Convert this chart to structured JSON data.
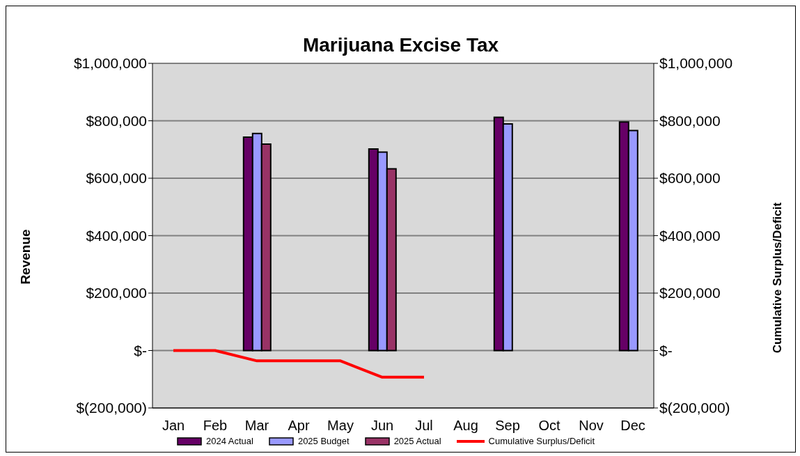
{
  "chart_data": {
    "type": "bar",
    "title": "Marijuana Excise Tax",
    "ylabel": "Revenue",
    "y2label": "Cumulative  Surplus/Deficit",
    "categories": [
      "Jan",
      "Feb",
      "Mar",
      "Apr",
      "May",
      "Jun",
      "Jul",
      "Aug",
      "Sep",
      "Oct",
      "Nov",
      "Dec"
    ],
    "series": [
      {
        "name": "2024 Actual",
        "color": "#660066",
        "values": [
          null,
          null,
          743000,
          null,
          null,
          702000,
          null,
          null,
          812000,
          null,
          null,
          796000
        ]
      },
      {
        "name": "2025 Budget",
        "color": "#9999ff",
        "values": [
          null,
          null,
          756000,
          null,
          null,
          691000,
          null,
          null,
          789000,
          null,
          null,
          766000
        ]
      },
      {
        "name": "2025 Actual",
        "color": "#993366",
        "values": [
          null,
          null,
          719000,
          null,
          null,
          633000,
          null,
          null,
          null,
          null,
          null,
          null
        ]
      },
      {
        "name": "Cumulative Surplus/Deficit",
        "type": "line",
        "axis": "y2",
        "color": "#ff0000",
        "values": [
          0,
          0,
          -36000,
          -36000,
          -36000,
          -93000,
          -93000,
          null,
          null,
          null,
          null,
          null
        ]
      }
    ],
    "ylim": [
      -200000,
      1000000
    ],
    "yticks": [
      {
        "value": -200000,
        "label": "$(200,000)"
      },
      {
        "value": 0,
        "label": "$-"
      },
      {
        "value": 200000,
        "label": "$200,000"
      },
      {
        "value": 400000,
        "label": "$400,000"
      },
      {
        "value": 600000,
        "label": "$600,000"
      },
      {
        "value": 800000,
        "label": "$800,000"
      },
      {
        "value": 1000000,
        "label": "$1,000,000"
      }
    ],
    "y2lim": [
      -200000,
      1000000
    ],
    "y2ticks": [
      {
        "value": -200000,
        "label": "$(200,000)"
      },
      {
        "value": 0,
        "label": "$-"
      },
      {
        "value": 200000,
        "label": "$200,000"
      },
      {
        "value": 400000,
        "label": "$400,000"
      },
      {
        "value": 600000,
        "label": "$600,000"
      },
      {
        "value": 800000,
        "label": "$800,000"
      },
      {
        "value": 1000000,
        "label": "$1,000,000"
      }
    ],
    "grid": "y",
    "legend": "bottom",
    "marker": "none",
    "line_style": "solid"
  }
}
